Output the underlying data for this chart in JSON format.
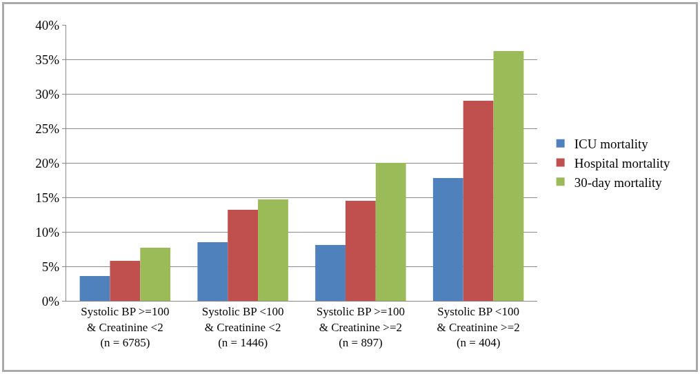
{
  "chart_data": {
    "type": "bar",
    "categories": [
      "Systolic BP >=100\n& Creatinine <2\n(n = 6785)",
      "Systolic BP <100\n& Creatinine <2\n(n = 1446)",
      "Systolic BP >=100\n& Creatinine >=2\n(n = 897)",
      "Systolic BP <100\n& Creatinine >=2\n(n = 404)"
    ],
    "series": [
      {
        "name": "ICU mortality",
        "color": "#4f81bd",
        "values": [
          3.6,
          8.5,
          8.1,
          17.8
        ]
      },
      {
        "name": "Hospital mortality",
        "color": "#c0504d",
        "values": [
          5.8,
          13.2,
          14.5,
          29.0
        ]
      },
      {
        "name": "30-day mortality",
        "color": "#9bbb59",
        "values": [
          7.7,
          14.7,
          20.0,
          36.2
        ]
      }
    ],
    "ylim": [
      0,
      40
    ],
    "yticks": [
      {
        "value": 0,
        "label": "0%"
      },
      {
        "value": 5,
        "label": "5%"
      },
      {
        "value": 10,
        "label": "10%"
      },
      {
        "value": 15,
        "label": "15%"
      },
      {
        "value": 20,
        "label": "20%"
      },
      {
        "value": 25,
        "label": "25%"
      },
      {
        "value": 30,
        "label": "30%"
      },
      {
        "value": 35,
        "label": "35%"
      },
      {
        "value": 40,
        "label": "40%"
      }
    ],
    "grid": "y",
    "legend": "right"
  }
}
